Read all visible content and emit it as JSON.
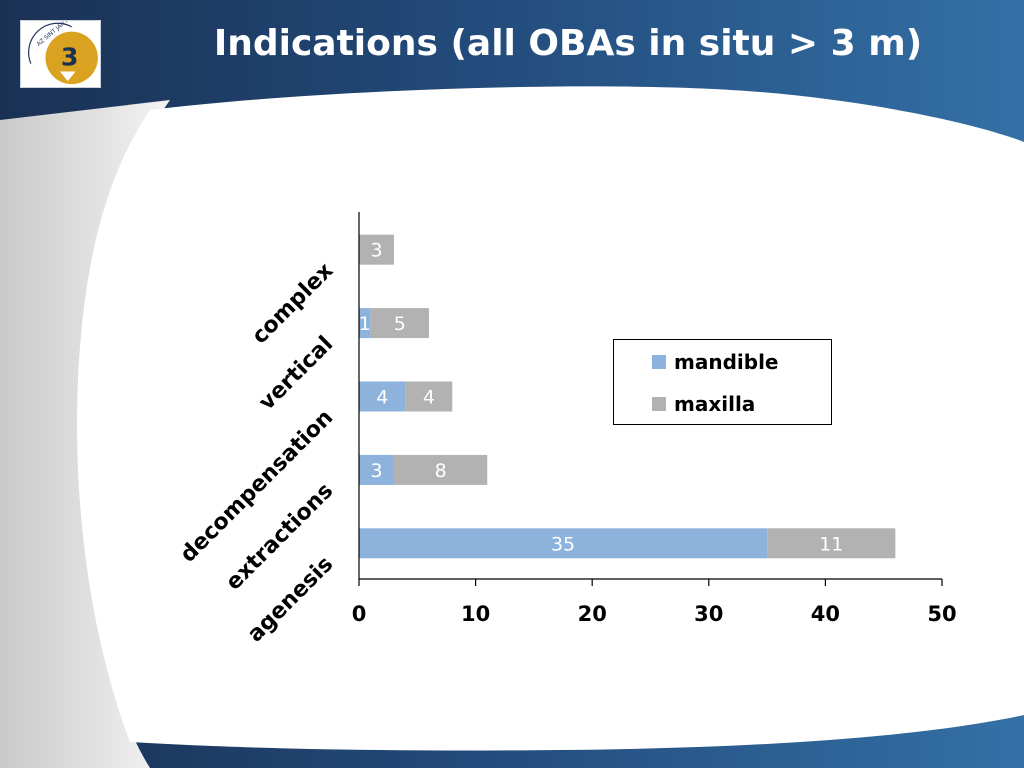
{
  "slide": {
    "title": "Indications (all OBAs in situ > 3 m)",
    "logo_text": "AZ SINT JAN AV",
    "logo_mark": "3"
  },
  "colors": {
    "header_dark": "#1a3153",
    "header_light": "#3470a6",
    "mandible": "#8db3dc",
    "maxilla": "#b2b2b2"
  },
  "chart_data": {
    "type": "bar",
    "orientation": "horizontal",
    "stacked": true,
    "categories": [
      "agenesis",
      "extractions",
      "decompensation",
      "vertical",
      "complex"
    ],
    "series": [
      {
        "name": "mandible",
        "values": [
          35,
          3,
          4,
          1,
          0
        ]
      },
      {
        "name": "maxilla",
        "values": [
          11,
          8,
          4,
          5,
          3
        ]
      }
    ],
    "xlim": [
      0,
      50
    ],
    "xticks": [
      0,
      10,
      20,
      30,
      40,
      50
    ],
    "grid": false,
    "legend": "right"
  }
}
